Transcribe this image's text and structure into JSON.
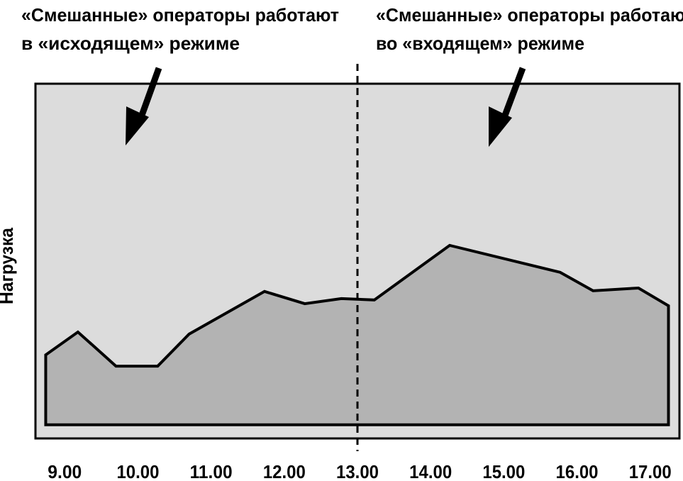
{
  "chart_data": {
    "type": "area",
    "ylabel": "Нагрузка",
    "annotations": [
      [
        "«Смешанные» операторы работают",
        "в «исходящем» режиме"
      ],
      [
        "«Смешанные» операторы работают",
        "во «входящем» режиме"
      ]
    ],
    "divider_x": 13,
    "x": [
      8.74,
      9.18,
      9.7,
      10.27,
      10.7,
      11.73,
      12.28,
      12.78,
      13.23,
      14.26,
      15.77,
      16.22,
      16.84,
      17.25
    ],
    "values": [
      20.5,
      27.2,
      17.2,
      17.2,
      26.6,
      39.1,
      35.5,
      37.0,
      36.6,
      52.6,
      44.7,
      39.3,
      40.1,
      34.9
    ],
    "color": "#b3b3b3",
    "background": "#dcdcdc",
    "xlim": [
      8.6,
      17.4
    ],
    "ylim": [
      -4,
      100
    ],
    "xticks": [
      {
        "value": 9,
        "label": "9.00"
      },
      {
        "value": 10,
        "label": "10.00"
      },
      {
        "value": 11,
        "label": "11.00"
      },
      {
        "value": 12,
        "label": "12.00"
      },
      {
        "value": 13,
        "label": "13.00"
      },
      {
        "value": 14,
        "label": "14.00"
      },
      {
        "value": 15,
        "label": "15.00"
      },
      {
        "value": 16,
        "label": "16.00"
      },
      {
        "value": 17,
        "label": "17.00"
      }
    ]
  }
}
